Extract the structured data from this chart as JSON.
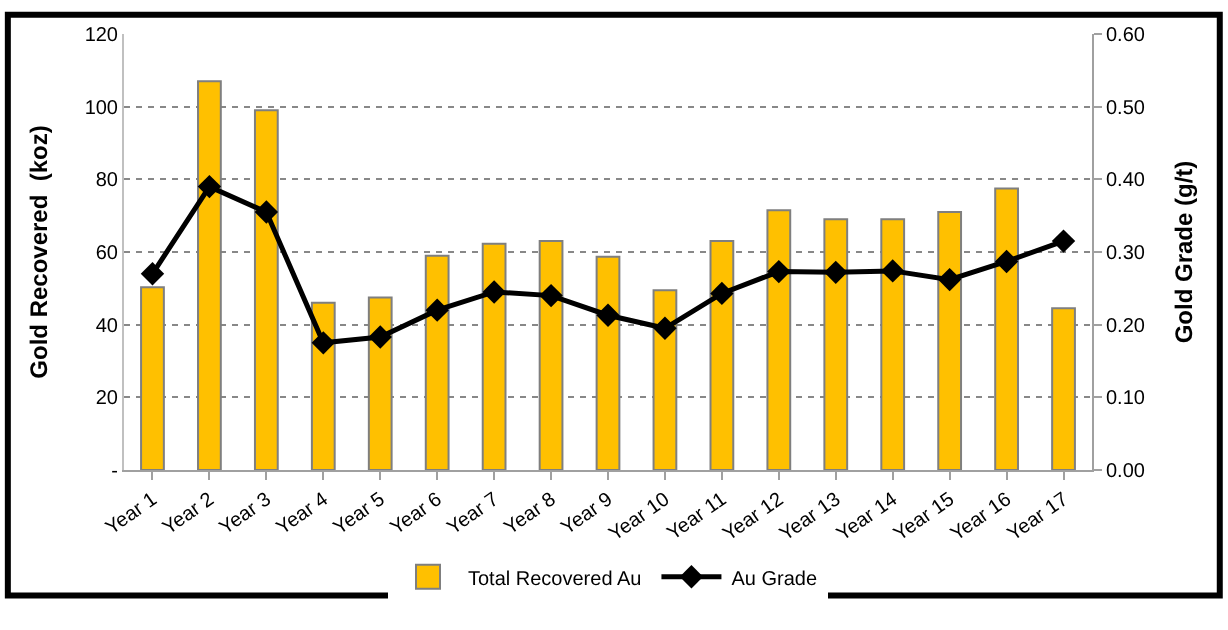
{
  "chart_data": {
    "type": "bar",
    "categories": [
      "Year 1",
      "Year 2",
      "Year 3",
      "Year 4",
      "Year 5",
      "Year 6",
      "Year 7",
      "Year 8",
      "Year 9",
      "Year 10",
      "Year 11",
      "Year 12",
      "Year 13",
      "Year 14",
      "Year 15",
      "Year 16",
      "Year 17"
    ],
    "series": [
      {
        "name": "Total Recovered Au",
        "color": "#ffc000",
        "values": [
          50.3,
          107,
          99,
          46,
          47.5,
          59,
          62.3,
          63,
          58.7,
          49.5,
          63,
          71.5,
          69,
          69,
          71,
          77.5,
          44.5
        ]
      },
      {
        "name": "Au Grade",
        "type": "line",
        "axis": "y2",
        "color": "#000000",
        "marker": "diamond",
        "values": [
          0.27,
          0.39,
          0.355,
          0.175,
          0.183,
          0.22,
          0.245,
          0.24,
          0.213,
          0.195,
          0.243,
          0.273,
          0.272,
          0.274,
          0.262,
          0.287,
          0.315
        ]
      }
    ],
    "ylabel": "Gold Recovered  (koz)",
    "y2label": "Gold Grade (g/t)",
    "ylim": [
      0,
      120
    ],
    "yticks": [
      {
        "value": 0,
        "label": "-"
      },
      20,
      40,
      60,
      80,
      100,
      120
    ],
    "y2lim": [
      0,
      0.6
    ],
    "y2ticks": [
      {
        "value": 0,
        "label": "0.00"
      },
      {
        "value": 0.1,
        "label": "0.10"
      },
      {
        "value": 0.2,
        "label": "0.20"
      },
      {
        "value": 0.3,
        "label": "0.30"
      },
      {
        "value": 0.4,
        "label": "0.40"
      },
      {
        "value": 0.5,
        "label": "0.50"
      },
      {
        "value": 0.6,
        "label": "0.60"
      }
    ],
    "grid": "y",
    "legend": "bottom"
  }
}
